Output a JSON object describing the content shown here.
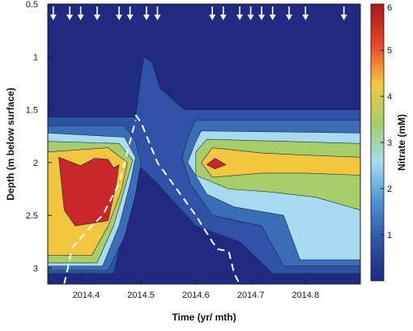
{
  "chart_data": {
    "type": "heatmap",
    "subtype": "filled-contour",
    "title": "",
    "xlabel": "Time (yr/ mth)",
    "ylabel": "Depth (m below surface)",
    "colorbar_label": "Nitrate (mM)",
    "xlim": [
      2014.33,
      2014.9
    ],
    "ylim": [
      0.5,
      3.15
    ],
    "y_inverted": true,
    "x_ticks": [
      2014.4,
      2014.5,
      2014.6,
      2014.7,
      2014.8
    ],
    "x_tick_labels": [
      "2014.4",
      "2014.5",
      "2014.6",
      "2014.7",
      "2014.8"
    ],
    "y_ticks": [
      0.5,
      1,
      1.5,
      2,
      2.5,
      3
    ],
    "y_tick_labels": [
      "0.5",
      "1",
      "1.5",
      "2",
      "2.5",
      "3"
    ],
    "colorbar": {
      "min": 0,
      "max": 6,
      "ticks": [
        1,
        2,
        3,
        4,
        5,
        6
      ],
      "tick_labels": [
        "1",
        "2",
        "3",
        "4",
        "5",
        "6"
      ],
      "colormap": "jet",
      "colors": [
        "#1f2a80",
        "#2e53a6",
        "#4f90d0",
        "#a7dbef",
        "#a6cd6a",
        "#f3c642",
        "#e2442a",
        "#a51b1f"
      ]
    },
    "levels": [
      {
        "value": 0.5,
        "color": "#2e53a6"
      },
      {
        "value": 1,
        "color": "#3a6cb8"
      },
      {
        "value": 2,
        "color": "#a7dbef"
      },
      {
        "value": 3,
        "color": "#a6cd6a"
      },
      {
        "value": 4,
        "color": "#f3c642"
      },
      {
        "value": 5,
        "color": "#c9262a"
      }
    ],
    "sampling_dates_arrows": [
      2014.34,
      2014.37,
      2014.39,
      2014.42,
      2014.46,
      2014.48,
      2014.51,
      2014.53,
      2014.63,
      2014.65,
      2014.68,
      2014.7,
      2014.72,
      2014.74,
      2014.77,
      2014.8,
      2014.87
    ],
    "background_level_color": "#1f2a80",
    "contour_regions": [
      {
        "level": 0.5,
        "polygon": [
          [
            2014.33,
            1.57
          ],
          [
            2014.49,
            1.57
          ],
          [
            2014.505,
            1.0
          ],
          [
            2014.52,
            1.05
          ],
          [
            2014.535,
            1.3
          ],
          [
            2014.58,
            1.5
          ],
          [
            2014.9,
            1.5
          ],
          [
            2014.9,
            3.05
          ],
          [
            2014.74,
            3.05
          ],
          [
            2014.68,
            2.75
          ],
          [
            2014.6,
            2.6
          ],
          [
            2014.53,
            2.2
          ],
          [
            2014.5,
            2.05
          ],
          [
            2014.47,
            2.6
          ],
          [
            2014.45,
            3.05
          ],
          [
            2014.33,
            3.05
          ]
        ]
      },
      {
        "level": 1,
        "polygon": [
          [
            2014.33,
            1.65
          ],
          [
            2014.47,
            1.65
          ],
          [
            2014.49,
            1.8
          ],
          [
            2014.5,
            2.0
          ],
          [
            2014.49,
            2.3
          ],
          [
            2014.47,
            2.7
          ],
          [
            2014.44,
            3.02
          ],
          [
            2014.33,
            3.02
          ]
        ]
      },
      {
        "level": 1,
        "polygon": [
          [
            2014.6,
            1.6
          ],
          [
            2014.9,
            1.6
          ],
          [
            2014.9,
            2.98
          ],
          [
            2014.76,
            2.98
          ],
          [
            2014.72,
            2.6
          ],
          [
            2014.63,
            2.5
          ],
          [
            2014.59,
            2.2
          ],
          [
            2014.575,
            1.95
          ],
          [
            2014.59,
            1.7
          ]
        ]
      },
      {
        "level": 2,
        "polygon": [
          [
            2014.33,
            1.72
          ],
          [
            2014.47,
            1.76
          ],
          [
            2014.49,
            1.95
          ],
          [
            2014.48,
            2.2
          ],
          [
            2014.46,
            2.6
          ],
          [
            2014.43,
            2.98
          ],
          [
            2014.33,
            2.98
          ]
        ]
      },
      {
        "level": 2,
        "polygon": [
          [
            2014.61,
            1.7
          ],
          [
            2014.9,
            1.72
          ],
          [
            2014.9,
            2.92
          ],
          [
            2014.79,
            2.92
          ],
          [
            2014.76,
            2.5
          ],
          [
            2014.67,
            2.42
          ],
          [
            2014.62,
            2.3
          ],
          [
            2014.585,
            2.0
          ],
          [
            2014.6,
            1.8
          ]
        ]
      },
      {
        "level": 3,
        "polygon": [
          [
            2014.33,
            1.8
          ],
          [
            2014.46,
            1.82
          ],
          [
            2014.485,
            1.98
          ],
          [
            2014.47,
            2.25
          ],
          [
            2014.45,
            2.6
          ],
          [
            2014.42,
            2.95
          ],
          [
            2014.33,
            2.95
          ]
        ]
      },
      {
        "level": 3,
        "polygon": [
          [
            2014.62,
            1.78
          ],
          [
            2014.9,
            1.82
          ],
          [
            2014.9,
            2.45
          ],
          [
            2014.82,
            2.33
          ],
          [
            2014.74,
            2.28
          ],
          [
            2014.66,
            2.25
          ],
          [
            2014.6,
            2.12
          ],
          [
            2014.6,
            1.9
          ]
        ]
      },
      {
        "level": 4,
        "polygon": [
          [
            2014.33,
            1.9
          ],
          [
            2014.44,
            1.86
          ],
          [
            2014.475,
            2.0
          ],
          [
            2014.465,
            2.25
          ],
          [
            2014.44,
            2.6
          ],
          [
            2014.41,
            2.88
          ],
          [
            2014.33,
            2.88
          ]
        ]
      },
      {
        "level": 4,
        "polygon": [
          [
            2014.63,
            1.86
          ],
          [
            2014.72,
            1.91
          ],
          [
            2014.8,
            1.93
          ],
          [
            2014.9,
            1.95
          ],
          [
            2014.9,
            2.12
          ],
          [
            2014.8,
            2.1
          ],
          [
            2014.72,
            2.1
          ],
          [
            2014.63,
            2.14
          ],
          [
            2014.61,
            2.0
          ]
        ]
      },
      {
        "level": 5,
        "polygon": [
          [
            2014.35,
            1.95
          ],
          [
            2014.39,
            2.03
          ],
          [
            2014.415,
            1.96
          ],
          [
            2014.44,
            1.97
          ],
          [
            2014.45,
            2.05
          ],
          [
            2014.46,
            2.02
          ],
          [
            2014.455,
            2.2
          ],
          [
            2014.44,
            2.55
          ],
          [
            2014.38,
            2.6
          ],
          [
            2014.36,
            2.45
          ]
        ]
      },
      {
        "level": 5,
        "polygon": [
          [
            2014.635,
            1.96
          ],
          [
            2014.655,
            2.02
          ],
          [
            2014.635,
            2.06
          ],
          [
            2014.62,
            2.02
          ]
        ]
      }
    ],
    "dashed_lines": [
      {
        "points": [
          [
            2014.36,
            3.15
          ],
          [
            2014.375,
            2.8
          ],
          [
            2014.41,
            2.6
          ],
          [
            2014.43,
            2.5
          ],
          [
            2014.44,
            2.4
          ],
          [
            2014.46,
            2.2
          ],
          [
            2014.49,
            1.6
          ]
        ]
      },
      {
        "points": [
          [
            2014.49,
            1.55
          ],
          [
            2014.5,
            1.62
          ],
          [
            2014.53,
            2.0
          ],
          [
            2014.6,
            2.5
          ],
          [
            2014.63,
            2.75
          ],
          [
            2014.64,
            2.82
          ],
          [
            2014.66,
            2.84
          ],
          [
            2014.67,
            3.05
          ],
          [
            2014.68,
            3.15
          ]
        ]
      }
    ]
  }
}
